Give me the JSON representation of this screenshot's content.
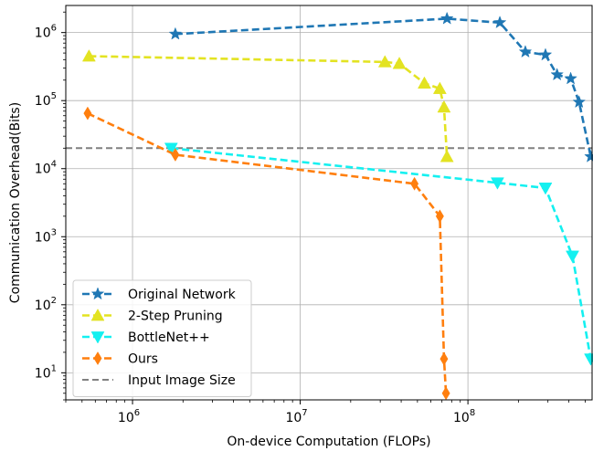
{
  "chart_data": {
    "type": "line",
    "xscale": "log",
    "yscale": "log",
    "xlabel": "On-device Computation (FLOPs)",
    "ylabel": "Communication Overhead(Bits)",
    "xlim": [
      400000,
      550000000
    ],
    "ylim": [
      4,
      2500000
    ],
    "grid": true,
    "legend_position": "lower-left",
    "x_ticks": [
      {
        "value": 1000000,
        "base": "10",
        "exp": "6"
      },
      {
        "value": 10000000,
        "base": "10",
        "exp": "7"
      },
      {
        "value": 100000000,
        "base": "10",
        "exp": "8"
      }
    ],
    "y_ticks": [
      {
        "value": 10,
        "base": "10",
        "exp": "1"
      },
      {
        "value": 100,
        "base": "10",
        "exp": "2"
      },
      {
        "value": 1000,
        "base": "10",
        "exp": "3"
      },
      {
        "value": 10000,
        "base": "10",
        "exp": "4"
      },
      {
        "value": 100000,
        "base": "10",
        "exp": "5"
      },
      {
        "value": 1000000,
        "base": "10",
        "exp": "6"
      }
    ],
    "series": [
      {
        "name": "Original Network",
        "color": "#1f77b4",
        "marker": "star",
        "points": [
          [
            1800000,
            950000
          ],
          [
            75000000,
            1600000
          ],
          [
            155000000,
            1400000
          ],
          [
            220000000,
            520000
          ],
          [
            290000000,
            470000
          ],
          [
            340000000,
            240000
          ],
          [
            410000000,
            210000
          ],
          [
            460000000,
            95000
          ],
          [
            540000000,
            15000
          ]
        ]
      },
      {
        "name": "2-Step Pruning",
        "color": "#e3e322",
        "marker": "triangle-up",
        "points": [
          [
            550000,
            450000
          ],
          [
            32000000,
            370000
          ],
          [
            39000000,
            350000
          ],
          [
            55000000,
            180000
          ],
          [
            68000000,
            150000
          ],
          [
            72000000,
            80000
          ],
          [
            75000000,
            15000
          ]
        ]
      },
      {
        "name": "BottleNet++",
        "color": "#14f0f0",
        "marker": "triangle-down",
        "points": [
          [
            1700000,
            20000
          ],
          [
            150000000,
            6200
          ],
          [
            290000000,
            5200
          ],
          [
            420000000,
            520
          ],
          [
            540000000,
            16
          ]
        ]
      },
      {
        "name": "Ours",
        "color": "#ff7f0e",
        "marker": "diamond",
        "points": [
          [
            540000,
            65000
          ],
          [
            1800000,
            16000
          ],
          [
            48000000,
            6000
          ],
          [
            68000000,
            2000
          ],
          [
            72000000,
            16
          ],
          [
            74000000,
            5
          ]
        ]
      }
    ],
    "reference_lines": [
      {
        "name": "Input Image Size",
        "y": 20000,
        "color": "#808080",
        "style": "dashed"
      }
    ]
  }
}
